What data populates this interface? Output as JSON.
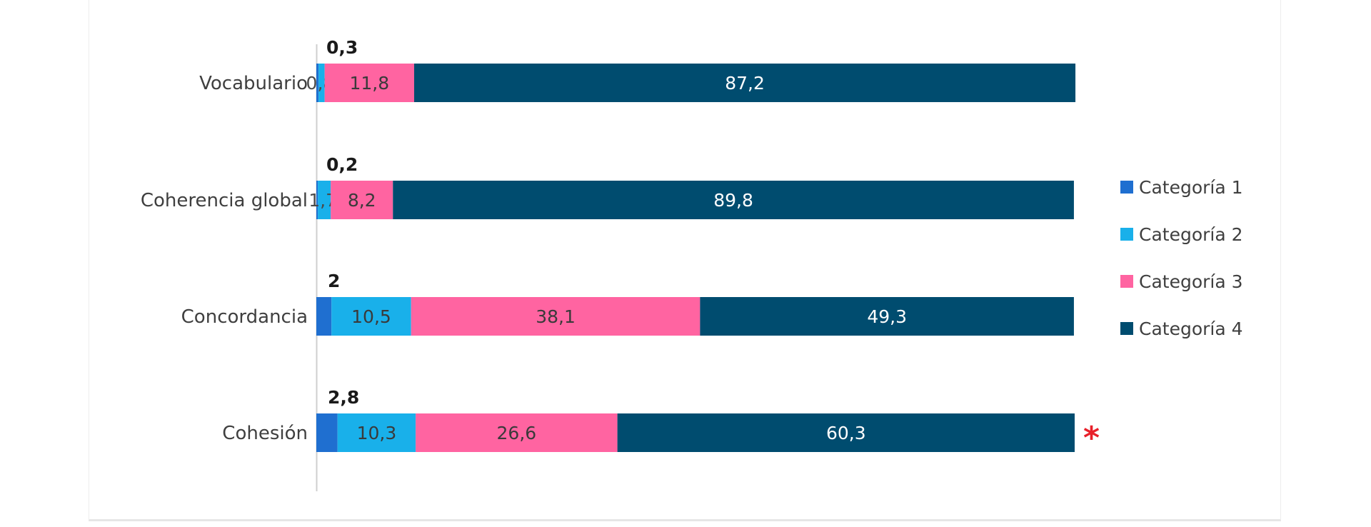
{
  "chart_data": {
    "type": "bar",
    "orientation": "horizontal",
    "stacked": true,
    "categories": [
      "Vocabulario",
      "Coherencia global",
      "Concordancia",
      "Cohesión"
    ],
    "series": [
      {
        "name": "Categoría 1",
        "color": "#1f6fd0",
        "values": [
          0.3,
          0.2,
          2,
          2.8
        ],
        "labels": [
          "0,3",
          "0,2",
          "2",
          "2,8"
        ]
      },
      {
        "name": "Categoría 2",
        "color": "#19b0ea",
        "values": [
          0.8,
          1.7,
          10.5,
          10.3
        ],
        "labels": [
          "0,8",
          "1,7",
          "10,5",
          "10,3"
        ]
      },
      {
        "name": "Categoría 3",
        "color": "#ff64a1",
        "values": [
          11.8,
          8.2,
          38.1,
          26.6
        ],
        "labels": [
          "11,8",
          "8,2",
          "38,1",
          "26,6"
        ]
      },
      {
        "name": "Categoría 4",
        "color": "#004c6f",
        "values": [
          87.2,
          89.8,
          49.3,
          60.3
        ],
        "labels": [
          "87,2",
          "89,8",
          "49,3",
          "60,3"
        ]
      }
    ],
    "xlim": [
      0,
      100
    ],
    "grid": false,
    "legend": "right",
    "annotations": [
      {
        "category": "Cohesión",
        "text": "*"
      }
    ]
  }
}
